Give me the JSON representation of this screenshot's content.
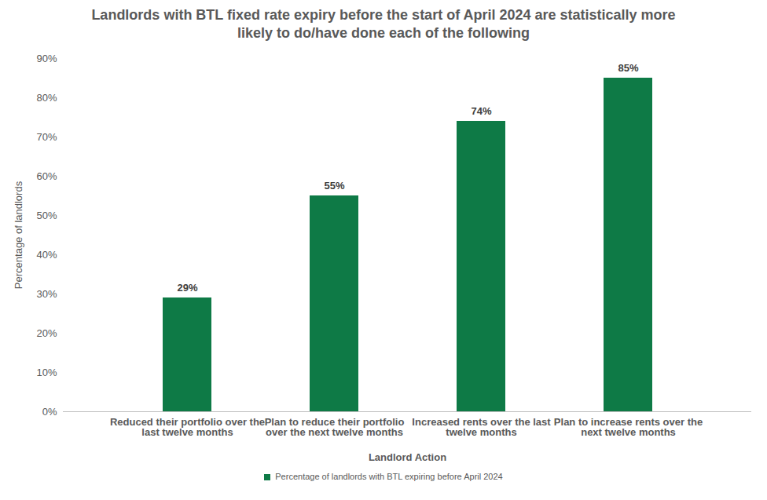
{
  "chart_data": {
    "type": "bar",
    "title": "Landlords with BTL fixed rate expiry before the start of April 2024 are statistically more likely to do/have done each of the following",
    "x_label": "Landlord Action",
    "y_label": "Percentage of landlords",
    "categories": [
      "Reduced their portfolio over the last twelve months",
      "Plan to reduce their portfolio over the next twelve months",
      "Increased rents over the last twelve months",
      "Plan to increase rents over the next twelve months"
    ],
    "series": [
      {
        "name": "Percentage of landlords with BTL expiring before April 2024",
        "color": "#0e7a46",
        "values": [
          29,
          55,
          74,
          85
        ],
        "value_labels": [
          "29%",
          "55%",
          "74%",
          "85%"
        ]
      }
    ],
    "ylim": [
      0,
      90
    ],
    "yticks": [
      {
        "value": 0,
        "label": "0%"
      },
      {
        "value": 10,
        "label": "10%"
      },
      {
        "value": 20,
        "label": "20%"
      },
      {
        "value": 30,
        "label": "30%"
      },
      {
        "value": 40,
        "label": "40%"
      },
      {
        "value": 50,
        "label": "50%"
      },
      {
        "value": 60,
        "label": "60%"
      },
      {
        "value": 70,
        "label": "70%"
      },
      {
        "value": 80,
        "label": "80%"
      },
      {
        "value": 90,
        "label": "90%"
      }
    ],
    "grid": false,
    "data_labels": true,
    "legend": "bottom"
  }
}
